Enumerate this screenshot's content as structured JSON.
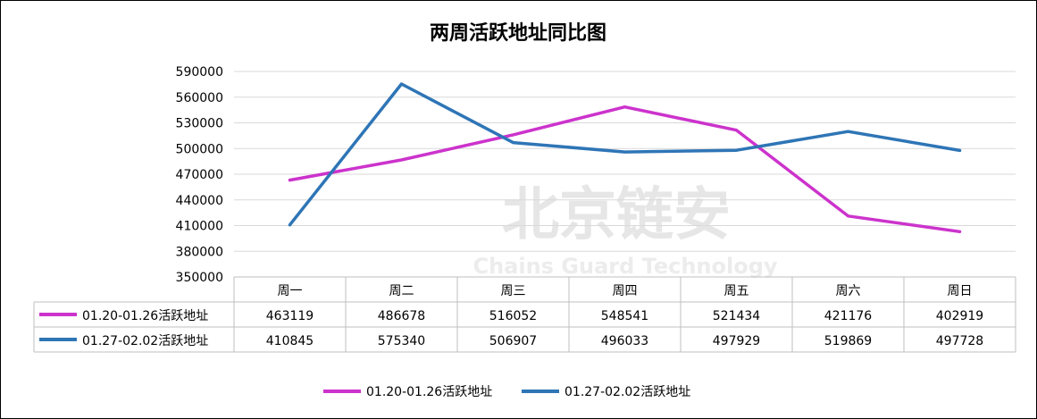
{
  "chart_data": {
    "type": "line",
    "title": "两周活跃地址同比图",
    "categories": [
      "周一",
      "周二",
      "周三",
      "周四",
      "周五",
      "周六",
      "周日"
    ],
    "series": [
      {
        "name": "01.20-01.26活跃地址",
        "color": "#cc33cc",
        "values": [
          463119,
          486678,
          516052,
          548541,
          521434,
          421176,
          402919
        ]
      },
      {
        "name": "01.27-02.02活跃地址",
        "color": "#2e75b6",
        "values": [
          410845,
          575340,
          506907,
          496033,
          497929,
          519869,
          497728
        ]
      }
    ],
    "ylim": [
      350000,
      590000
    ],
    "yticks": [
      350000,
      380000,
      410000,
      440000,
      470000,
      500000,
      530000,
      560000,
      590000
    ],
    "grid": true,
    "legend": "bottom",
    "data_table": true
  },
  "watermark": {
    "text": "北京链安",
    "subtext": "Chains Guard Technology"
  }
}
